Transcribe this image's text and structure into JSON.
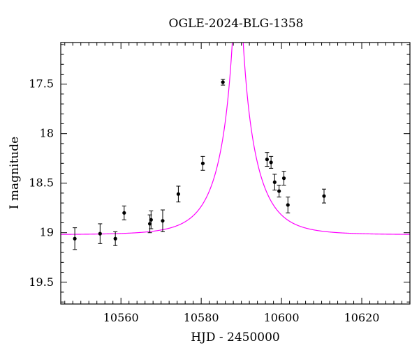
{
  "chart_data": {
    "type": "scatter",
    "title": "OGLE-2024-BLG-1358",
    "xlabel": "HJD - 2450000",
    "ylabel": "I magnitude",
    "xlim": [
      10545,
      10632
    ],
    "ylim": [
      19.72,
      17.08
    ],
    "y_inverted": true,
    "grid": false,
    "x_major_ticks": [
      10560,
      10580,
      10600,
      10620
    ],
    "x_tick_labels": [
      "10560",
      "10580",
      "10600",
      "10620"
    ],
    "x_minor_step": 2,
    "y_major_ticks": [
      17.5,
      18,
      18.5,
      19,
      19.5
    ],
    "y_tick_labels": [
      "17.5",
      "18",
      "18.5",
      "19",
      "19.5"
    ],
    "y_minor_step": 0.1,
    "series": [
      {
        "type": "scatter_errorbar",
        "color": "#000000",
        "points": [
          {
            "x": 10548.5,
            "y": 19.06,
            "err": 0.11
          },
          {
            "x": 10554.8,
            "y": 19.01,
            "err": 0.1
          },
          {
            "x": 10558.6,
            "y": 19.06,
            "err": 0.07
          },
          {
            "x": 10560.8,
            "y": 18.8,
            "err": 0.07
          },
          {
            "x": 10567.2,
            "y": 18.91,
            "err": 0.09
          },
          {
            "x": 10567.5,
            "y": 18.87,
            "err": 0.09
          },
          {
            "x": 10570.4,
            "y": 18.88,
            "err": 0.11
          },
          {
            "x": 10574.3,
            "y": 18.61,
            "err": 0.08
          },
          {
            "x": 10580.4,
            "y": 18.3,
            "err": 0.07
          },
          {
            "x": 10585.4,
            "y": 17.48,
            "err": 0.03
          },
          {
            "x": 10596.4,
            "y": 18.26,
            "err": 0.07
          },
          {
            "x": 10597.4,
            "y": 18.29,
            "err": 0.06
          },
          {
            "x": 10598.3,
            "y": 18.49,
            "err": 0.08
          },
          {
            "x": 10599.4,
            "y": 18.58,
            "err": 0.06
          },
          {
            "x": 10600.6,
            "y": 18.45,
            "err": 0.07
          },
          {
            "x": 10601.6,
            "y": 18.72,
            "err": 0.08
          },
          {
            "x": 10610.6,
            "y": 18.63,
            "err": 0.07
          }
        ]
      },
      {
        "type": "model_curve",
        "color": "#ff00ff",
        "model": {
          "t0": 10589.1,
          "u0": 0.06,
          "tE": 8.6,
          "baseline": 19.02
        }
      }
    ]
  }
}
